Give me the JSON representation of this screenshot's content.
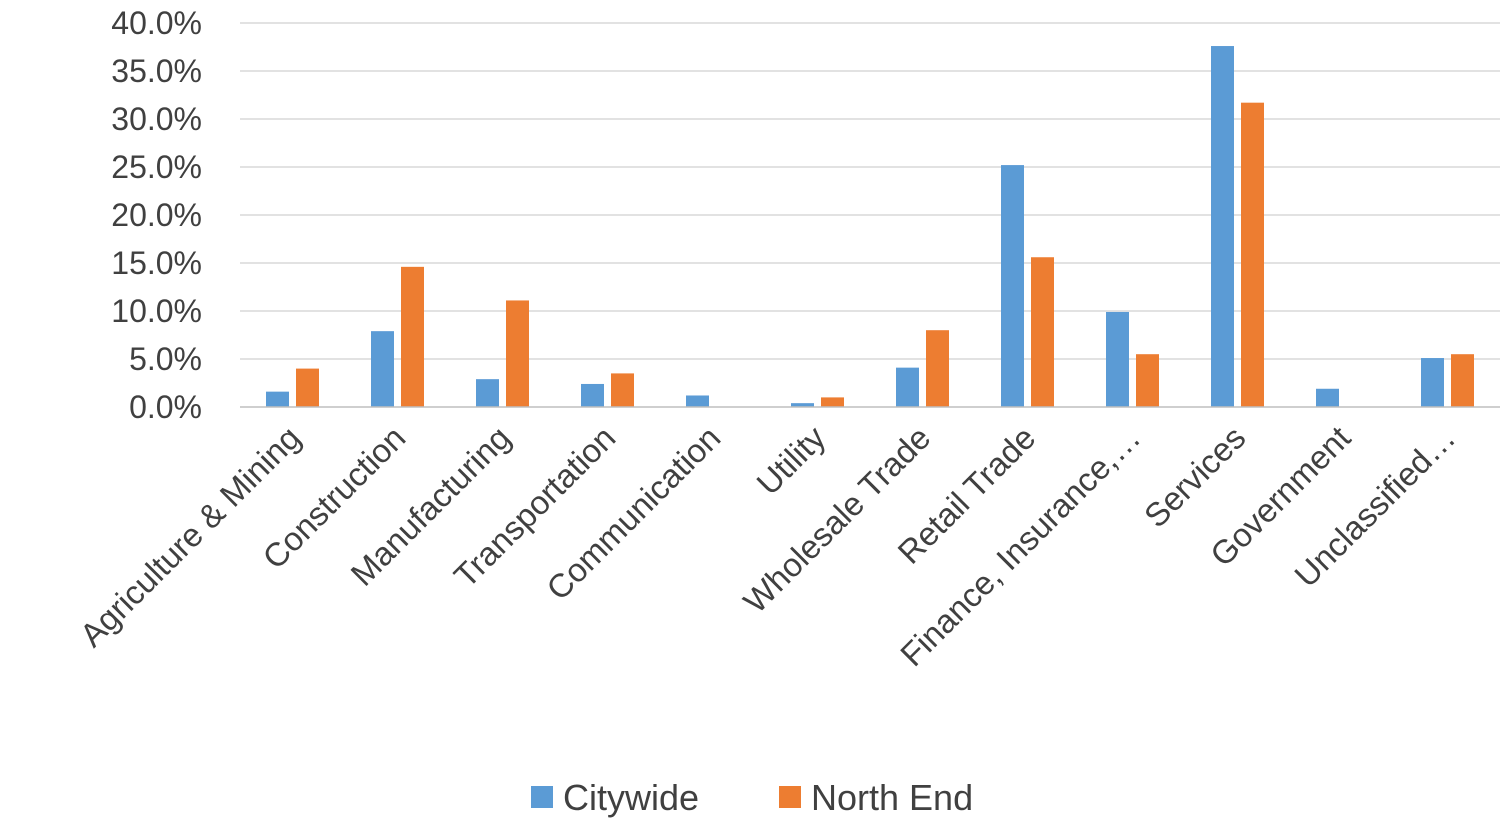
{
  "chart_data": {
    "type": "bar",
    "categories": [
      "Agriculture & Mining",
      "Construction",
      "Manufacturing",
      "Transportation",
      "Communication",
      "Utility",
      "Wholesale Trade",
      "Retail Trade",
      "Finance, Insurance,…",
      "Services",
      "Government",
      "Unclassified…"
    ],
    "series": [
      {
        "name": "Citywide",
        "color": "#5b9bd5",
        "values": [
          1.6,
          7.9,
          2.9,
          2.4,
          1.2,
          0.4,
          4.1,
          25.2,
          9.9,
          37.6,
          1.9,
          5.1
        ]
      },
      {
        "name": "North End",
        "color": "#ed7d31",
        "values": [
          4.0,
          14.6,
          11.1,
          3.5,
          0,
          1.0,
          8.0,
          15.6,
          5.5,
          31.7,
          0,
          5.5
        ]
      }
    ],
    "yticks": [
      "0.0%",
      "5.0%",
      "10.0%",
      "15.0%",
      "20.0%",
      "25.0%",
      "30.0%",
      "35.0%",
      "40.0%"
    ],
    "ylim": [
      0,
      40
    ],
    "grid": true,
    "legend": "bottom",
    "title": "",
    "xlabel": "",
    "ylabel": ""
  }
}
